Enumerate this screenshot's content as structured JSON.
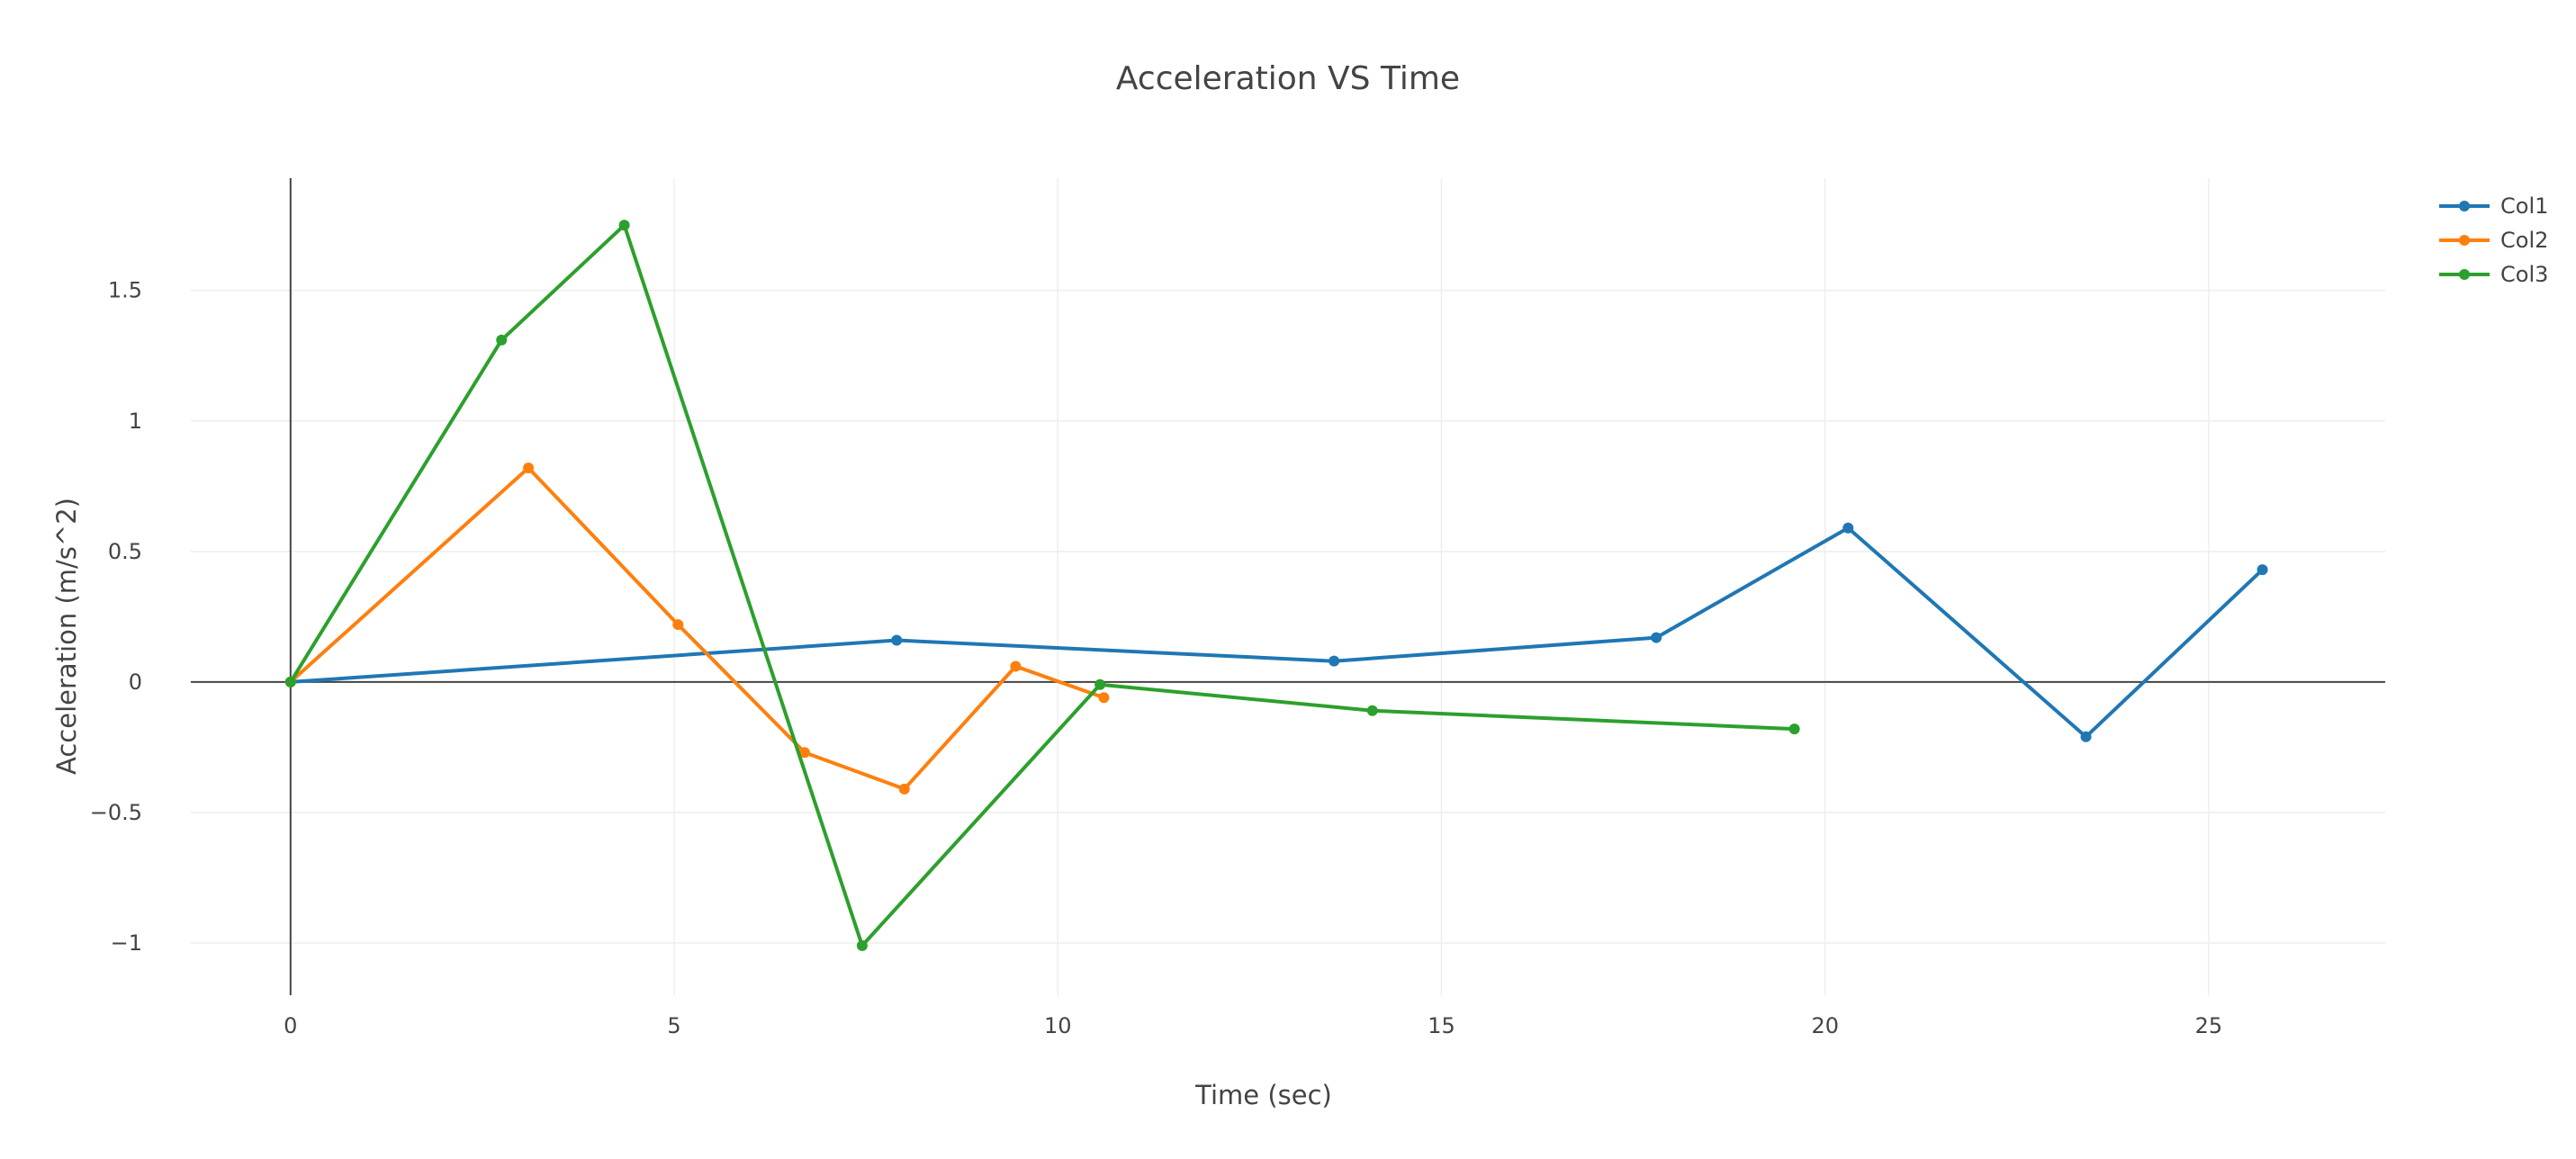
{
  "chart_data": {
    "type": "line",
    "title": "Acceleration VS Time",
    "xlabel": "Time (sec)",
    "ylabel": "Acceleration (m/s^2)",
    "xlim": [
      -1.3,
      27.3
    ],
    "ylim": [
      -1.2,
      1.93
    ],
    "x_ticks": [
      0,
      5,
      10,
      15,
      20,
      25
    ],
    "x_tick_labels": [
      "0",
      "5",
      "10",
      "15",
      "20",
      "25"
    ],
    "y_ticks": [
      -1,
      -0.5,
      0,
      0.5,
      1,
      1.5
    ],
    "y_tick_labels": [
      "−1",
      "−0.5",
      "0",
      "0.5",
      "1",
      "1.5"
    ],
    "grid": true,
    "legend_position": "top-right",
    "series": [
      {
        "name": "Col1",
        "color": "#1f77b4",
        "x": [
          0,
          7.9,
          13.6,
          17.8,
          20.3,
          23.4,
          25.7
        ],
        "y": [
          0,
          0.16,
          0.08,
          0.17,
          0.59,
          -0.21,
          0.43
        ]
      },
      {
        "name": "Col2",
        "color": "#ff7f0e",
        "x": [
          0,
          3.1,
          5.05,
          6.7,
          8.0,
          9.45,
          10.6
        ],
        "y": [
          0,
          0.82,
          0.22,
          -0.27,
          -0.41,
          0.06,
          -0.06
        ]
      },
      {
        "name": "Col3",
        "color": "#2ca02c",
        "x": [
          0,
          2.75,
          4.35,
          7.45,
          10.55,
          14.1,
          19.6
        ],
        "y": [
          0,
          1.31,
          1.75,
          -1.01,
          -0.01,
          -0.11,
          -0.18
        ]
      }
    ]
  }
}
